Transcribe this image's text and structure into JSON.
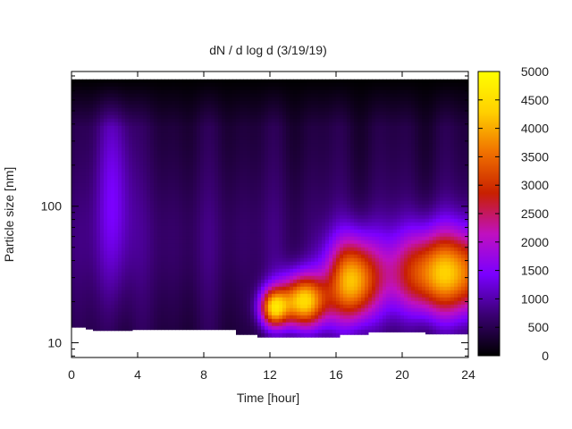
{
  "chart_data": {
    "type": "heatmap",
    "title": "dN / d log d (3/19/19)",
    "xlabel": "Time [hour]",
    "ylabel": "Particle size [nm]",
    "xlim": [
      0,
      24
    ],
    "xticks": [
      0,
      4,
      8,
      12,
      16,
      20,
      24
    ],
    "y_scale": "log",
    "ylim": [
      7.8,
      970
    ],
    "yticks": [
      10,
      100
    ],
    "colorbar": {
      "range": [
        0,
        5000
      ],
      "ticks": [
        0,
        500,
        1000,
        1500,
        2000,
        2500,
        3000,
        3500,
        4000,
        4500,
        5000
      ],
      "colormap": "gnuplot-hot",
      "colors": [
        "#000000",
        "#3a0072",
        "#7a00ff",
        "#c010c0",
        "#c82000",
        "#f07000",
        "#ffd000",
        "#ffff00"
      ]
    },
    "data_extent": {
      "y_max_nm": 850
    },
    "lower_size_cutoff_nm": [
      {
        "t": [
          0.0,
          0.8
        ],
        "d": 13.0
      },
      {
        "t": [
          0.8,
          1.3
        ],
        "d": 12.6
      },
      {
        "t": [
          1.3,
          3.7
        ],
        "d": 12.3
      },
      {
        "t": [
          3.7,
          10.0
        ],
        "d": 12.5
      },
      {
        "t": [
          10.0,
          11.3
        ],
        "d": 11.5
      },
      {
        "t": [
          11.3,
          16.2
        ],
        "d": 11.0
      },
      {
        "t": [
          16.2,
          18.0
        ],
        "d": 11.5
      },
      {
        "t": [
          18.0,
          19.7
        ],
        "d": 12.0
      },
      {
        "t": [
          19.7,
          21.4
        ],
        "d": 12.0
      },
      {
        "t": [
          21.4,
          24.0
        ],
        "d": 11.6
      }
    ],
    "features": [
      {
        "t": 2.6,
        "d": 150,
        "value": 1300,
        "t_width": 0.8,
        "d_width_decades": 0.6,
        "note": "broad violet band"
      },
      {
        "t": 12.2,
        "d": 18,
        "value": 3600,
        "t_width": 0.6,
        "d_width_decades": 0.1
      },
      {
        "t": 14.0,
        "d": 20,
        "value": 4300,
        "t_width": 1.0,
        "d_width_decades": 0.14
      },
      {
        "t": 17.0,
        "d": 28,
        "value": 3900,
        "t_width": 1.1,
        "d_width_decades": 0.22
      },
      {
        "t": 22.5,
        "d": 32,
        "value": 4000,
        "t_width": 2.2,
        "d_width_decades": 0.22
      }
    ]
  }
}
